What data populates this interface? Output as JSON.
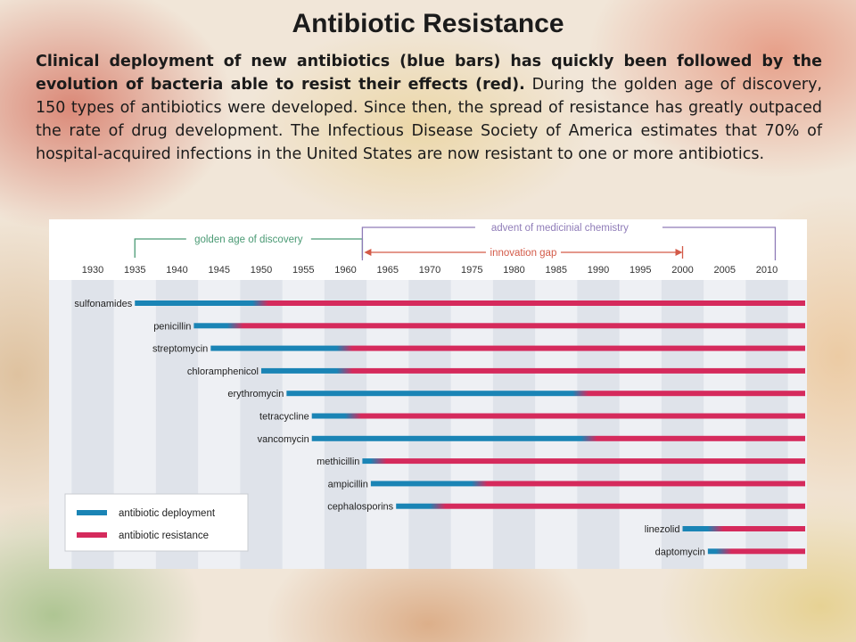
{
  "slide": {
    "title": "Antibiotic Resistance",
    "description_bold": "Clinical deployment of new antibiotics (blue bars) has quickly been followed by the evolution of bacteria able to resist their effects (red).",
    "description_rest": " During the golden age of discovery, 150 types of antibiotics were developed. Since then, the spread of resistance has greatly outpaced the rate of drug development. The Infectious Disease Society of America estimates that 70% of hospital-acquired infections in the United States are now resistant to one or more antibiotics."
  },
  "colors": {
    "deployment": "#1a84b5",
    "resistance": "#d52a5c",
    "bracket_green": "#4a9a74",
    "bracket_purple": "#8f7cb8",
    "innovation_gap": "#d35a48",
    "band_dark": "#dfe3ea",
    "band_light": "#eef0f4"
  },
  "chart_data": {
    "type": "bar",
    "orientation": "horizontal-timeline",
    "x_range": [
      1925,
      2013
    ],
    "x_ticks": [
      "1930",
      "1935",
      "1940",
      "1945",
      "1950",
      "1955",
      "1960",
      "1965",
      "1970",
      "1975",
      "1980",
      "1985",
      "1990",
      "1995",
      "2000",
      "2005",
      "2010"
    ],
    "end_year": 2013,
    "periods": [
      {
        "label": "golden age of discovery",
        "start": 1935,
        "end": 1962
      },
      {
        "label": "advent of medicinial chemistry",
        "start": 1962,
        "end": 2011
      },
      {
        "label": "innovation gap",
        "start": 1962,
        "end": 2000
      }
    ],
    "legend": [
      {
        "label": "antibiotic deployment",
        "key": "deployment"
      },
      {
        "label": "antibiotic resistance",
        "key": "resistance"
      }
    ],
    "legend_position": "bottom-left",
    "series": [
      {
        "name": "sulfonamides",
        "deployed": 1935,
        "resistance": 1950
      },
      {
        "name": "penicillin",
        "deployed": 1942,
        "resistance": 1947
      },
      {
        "name": "streptomycin",
        "deployed": 1944,
        "resistance": 1960
      },
      {
        "name": "chloramphenicol",
        "deployed": 1950,
        "resistance": 1960
      },
      {
        "name": "erythromycin",
        "deployed": 1953,
        "resistance": 1988
      },
      {
        "name": "tetracycline",
        "deployed": 1956,
        "resistance": 1961
      },
      {
        "name": "vancomycin",
        "deployed": 1956,
        "resistance": 1989
      },
      {
        "name": "methicillin",
        "deployed": 1962,
        "resistance": 1964
      },
      {
        "name": "ampicillin",
        "deployed": 1963,
        "resistance": 1976
      },
      {
        "name": "cephalosporins",
        "deployed": 1966,
        "resistance": 1971
      },
      {
        "name": "linezolid",
        "deployed": 2000,
        "resistance": 2004
      },
      {
        "name": "daptomycin",
        "deployed": 2003,
        "resistance": 2005
      }
    ]
  }
}
